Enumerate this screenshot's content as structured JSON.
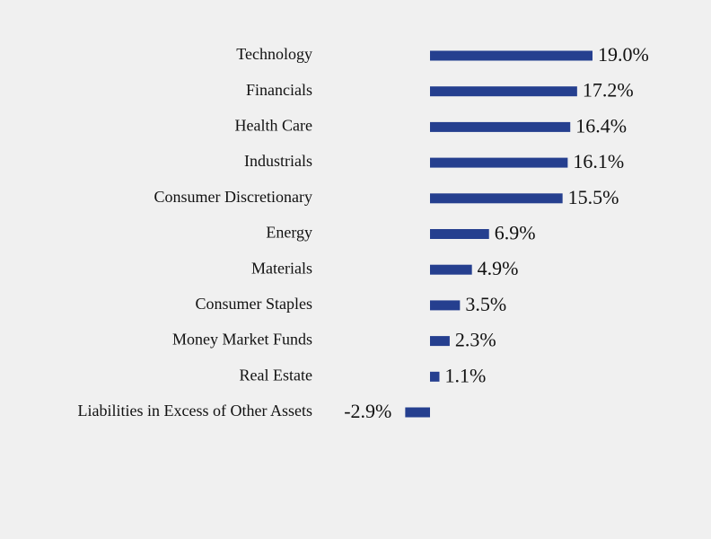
{
  "chart_data": {
    "type": "bar",
    "orientation": "horizontal",
    "categories": [
      "Technology",
      "Financials",
      "Health Care",
      "Industrials",
      "Consumer Discretionary",
      "Energy",
      "Materials",
      "Consumer Staples",
      "Money Market Funds",
      "Real Estate",
      "Liabilities in Excess of Other Assets"
    ],
    "values": [
      19.0,
      17.2,
      16.4,
      16.1,
      15.5,
      6.9,
      4.9,
      3.5,
      2.3,
      1.1,
      -2.9
    ],
    "value_labels": [
      "19.0%",
      "17.2%",
      "16.4%",
      "16.1%",
      "15.5%",
      "6.9%",
      "4.9%",
      "3.5%",
      "2.3%",
      "1.1%",
      "-2.9%"
    ],
    "color": "#253f8f"
  }
}
